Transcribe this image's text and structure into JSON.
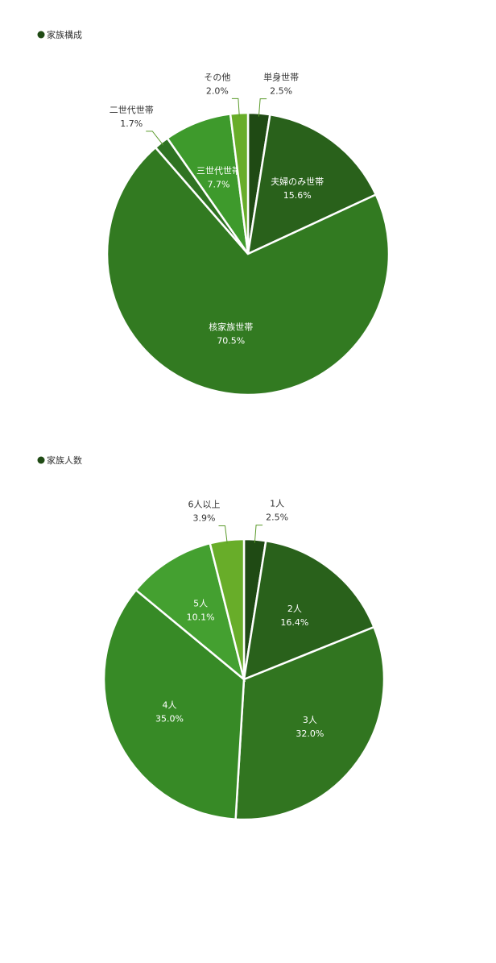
{
  "chart_data": [
    {
      "type": "pie",
      "title": "家族構成",
      "categories": [
        "単身世帯",
        "夫婦のみ世帯",
        "核家族世帯",
        "二世代世帯",
        "三世代世帯",
        "その他"
      ],
      "values": [
        2.5,
        15.6,
        70.5,
        1.7,
        7.7,
        2.0
      ],
      "value_labels": [
        "2.5%",
        "15.6%",
        "70.5%",
        "1.7%",
        "7.7%",
        "2.0%"
      ],
      "colors": [
        "#1f4a14",
        "#29611b",
        "#327a21",
        "#2f7322",
        "#3e9a2c",
        "#68ad29"
      ]
    },
    {
      "type": "pie",
      "title": "家族人数",
      "categories": [
        "1人",
        "2人",
        "3人",
        "4人",
        "5人",
        "6人以上"
      ],
      "values": [
        2.5,
        16.4,
        32.0,
        35.0,
        10.1,
        3.9
      ],
      "value_labels": [
        "2.5%",
        "16.4%",
        "32.0%",
        "35.0%",
        "10.1%",
        "3.9%"
      ],
      "colors": [
        "#1f4a14",
        "#29611b",
        "#317520",
        "#378a26",
        "#44a030",
        "#68ad29"
      ]
    }
  ]
}
